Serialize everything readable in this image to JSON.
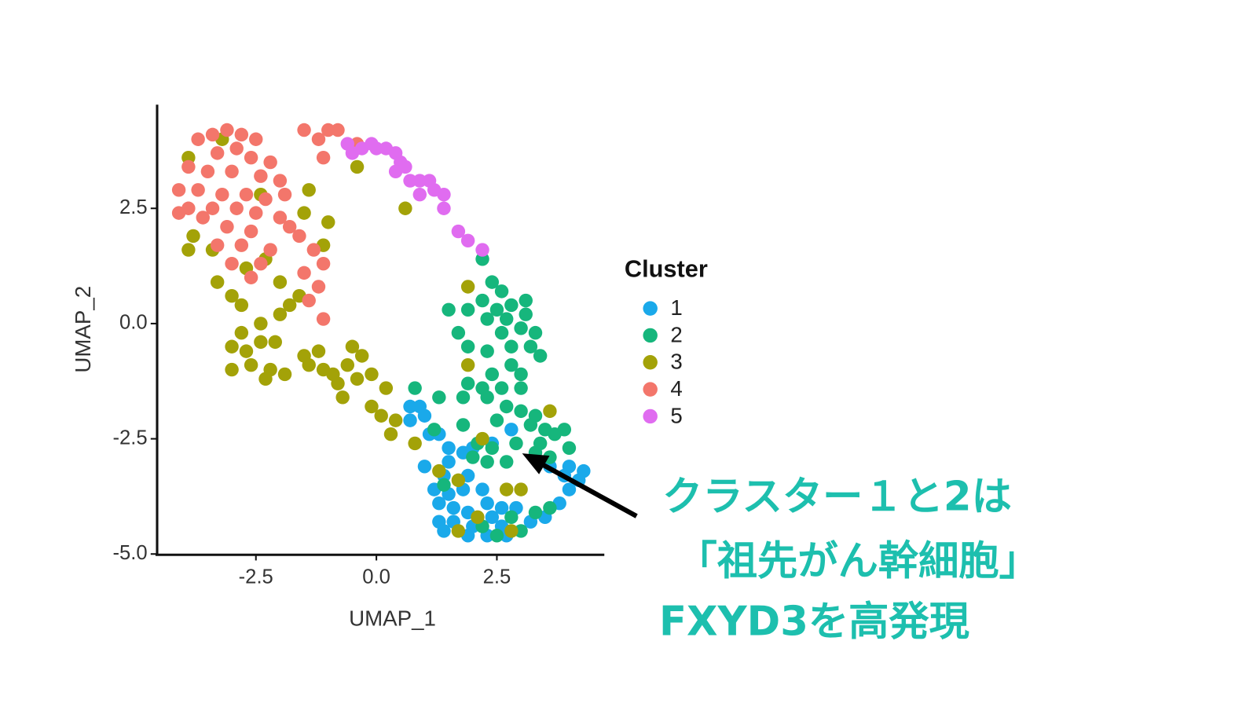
{
  "chart_data": {
    "type": "scatter",
    "xlabel": "UMAP_1",
    "ylabel": "UMAP_2",
    "xlim": [
      -4.55,
      4.73
    ],
    "ylim": [
      -5.0,
      4.75
    ],
    "xticks": [
      -2.5,
      {
        "value": 0,
        "label": "0.0"
      },
      2.5
    ],
    "yticks": [
      {
        "value": -5,
        "label": "-5.0"
      },
      -2.5,
      {
        "value": 0,
        "label": "0.0"
      },
      2.5
    ],
    "grid": false,
    "legend_title": "Cluster",
    "legend": "right",
    "annotation": [
      "クラスター１と2は",
      "「祖先がん幹細胞」",
      "FXYD3を高発現"
    ],
    "series": [
      {
        "name": "1",
        "color": "#1aa9ea",
        "points": [
          [
            0.7,
            -1.8
          ],
          [
            0.9,
            -1.8
          ],
          [
            1.0,
            -2.0
          ],
          [
            0.7,
            -2.1
          ],
          [
            1.1,
            -2.4
          ],
          [
            1.3,
            -2.4
          ],
          [
            1.5,
            -2.7
          ],
          [
            1.8,
            -2.8
          ],
          [
            2.0,
            -2.7
          ],
          [
            2.4,
            -2.6
          ],
          [
            2.8,
            -2.3
          ],
          [
            1.5,
            -3.0
          ],
          [
            1.0,
            -3.1
          ],
          [
            1.4,
            -3.3
          ],
          [
            1.9,
            -3.3
          ],
          [
            2.2,
            -3.6
          ],
          [
            1.2,
            -3.6
          ],
          [
            1.5,
            -3.7
          ],
          [
            1.8,
            -3.6
          ],
          [
            1.3,
            -3.9
          ],
          [
            1.6,
            -4.0
          ],
          [
            1.9,
            -4.1
          ],
          [
            2.3,
            -3.9
          ],
          [
            2.6,
            -4.0
          ],
          [
            2.9,
            -4.0
          ],
          [
            1.3,
            -4.3
          ],
          [
            1.6,
            -4.3
          ],
          [
            2.0,
            -4.4
          ],
          [
            2.4,
            -4.2
          ],
          [
            2.6,
            -4.4
          ],
          [
            2.3,
            -4.6
          ],
          [
            2.7,
            -4.6
          ],
          [
            1.9,
            -4.6
          ],
          [
            1.4,
            -4.5
          ],
          [
            3.2,
            -4.3
          ],
          [
            3.5,
            -4.2
          ],
          [
            3.8,
            -3.9
          ],
          [
            4.0,
            -3.6
          ],
          [
            4.2,
            -3.4
          ],
          [
            3.9,
            -3.3
          ],
          [
            4.3,
            -3.2
          ],
          [
            4.0,
            -3.1
          ],
          [
            3.6,
            -3.1
          ]
        ]
      },
      {
        "name": "2",
        "color": "#16b67c",
        "points": [
          [
            2.2,
            1.4
          ],
          [
            2.4,
            0.9
          ],
          [
            2.6,
            0.7
          ],
          [
            2.2,
            0.5
          ],
          [
            2.5,
            0.3
          ],
          [
            2.8,
            0.4
          ],
          [
            3.1,
            0.5
          ],
          [
            1.5,
            0.3
          ],
          [
            1.9,
            0.3
          ],
          [
            2.3,
            0.1
          ],
          [
            2.7,
            0.1
          ],
          [
            3.1,
            0.2
          ],
          [
            2.6,
            -0.2
          ],
          [
            3.0,
            -0.1
          ],
          [
            3.3,
            -0.2
          ],
          [
            1.7,
            -0.2
          ],
          [
            1.9,
            -0.5
          ],
          [
            2.3,
            -0.6
          ],
          [
            2.8,
            -0.5
          ],
          [
            3.2,
            -0.5
          ],
          [
            3.4,
            -0.7
          ],
          [
            2.8,
            -0.9
          ],
          [
            2.4,
            -1.1
          ],
          [
            3.0,
            -1.1
          ],
          [
            1.9,
            -1.3
          ],
          [
            2.2,
            -1.4
          ],
          [
            2.6,
            -1.4
          ],
          [
            3.0,
            -1.4
          ],
          [
            0.8,
            -1.4
          ],
          [
            1.3,
            -1.6
          ],
          [
            1.8,
            -1.6
          ],
          [
            2.3,
            -1.6
          ],
          [
            2.7,
            -1.8
          ],
          [
            3.0,
            -1.9
          ],
          [
            3.3,
            -2.0
          ],
          [
            2.5,
            -2.1
          ],
          [
            1.8,
            -2.2
          ],
          [
            3.2,
            -2.2
          ],
          [
            3.5,
            -2.3
          ],
          [
            1.2,
            -2.3
          ],
          [
            2.1,
            -2.6
          ],
          [
            2.4,
            -2.7
          ],
          [
            2.9,
            -2.6
          ],
          [
            3.4,
            -2.6
          ],
          [
            3.7,
            -2.4
          ],
          [
            3.9,
            -2.3
          ],
          [
            2.0,
            -2.9
          ],
          [
            2.3,
            -3.0
          ],
          [
            2.7,
            -3.0
          ],
          [
            3.3,
            -2.8
          ],
          [
            3.6,
            -2.9
          ],
          [
            4.0,
            -2.7
          ],
          [
            1.4,
            -3.5
          ],
          [
            3.6,
            -4.0
          ],
          [
            3.3,
            -4.1
          ],
          [
            2.8,
            -4.2
          ],
          [
            2.5,
            -4.6
          ],
          [
            3.0,
            -4.5
          ],
          [
            2.2,
            -4.4
          ]
        ]
      },
      {
        "name": "3",
        "color": "#a3a208",
        "points": [
          [
            -3.9,
            3.6
          ],
          [
            -3.2,
            4.0
          ],
          [
            -2.4,
            2.8
          ],
          [
            -1.4,
            2.9
          ],
          [
            -1.5,
            2.4
          ],
          [
            -1.0,
            2.2
          ],
          [
            -1.1,
            1.7
          ],
          [
            -3.8,
            1.9
          ],
          [
            -3.9,
            1.6
          ],
          [
            -3.4,
            1.6
          ],
          [
            -2.7,
            1.2
          ],
          [
            -2.3,
            1.4
          ],
          [
            -3.3,
            0.9
          ],
          [
            -2.0,
            0.9
          ],
          [
            -3.0,
            0.6
          ],
          [
            -2.8,
            0.4
          ],
          [
            -1.6,
            0.6
          ],
          [
            -1.8,
            0.4
          ],
          [
            -2.0,
            0.2
          ],
          [
            -2.4,
            0.0
          ],
          [
            -2.8,
            -0.2
          ],
          [
            -3.0,
            -0.5
          ],
          [
            -2.7,
            -0.6
          ],
          [
            -2.4,
            -0.4
          ],
          [
            -2.1,
            -0.4
          ],
          [
            -2.6,
            -0.9
          ],
          [
            -3.0,
            -1.0
          ],
          [
            -2.2,
            -1.0
          ],
          [
            -1.9,
            -1.1
          ],
          [
            -2.3,
            -1.2
          ],
          [
            -1.5,
            -0.7
          ],
          [
            -1.2,
            -0.6
          ],
          [
            -1.4,
            -0.9
          ],
          [
            -1.1,
            -1.0
          ],
          [
            -0.9,
            -1.1
          ],
          [
            -0.5,
            -0.5
          ],
          [
            -0.3,
            -0.7
          ],
          [
            -0.6,
            -0.9
          ],
          [
            -0.8,
            -1.3
          ],
          [
            -0.4,
            -1.2
          ],
          [
            -0.1,
            -1.1
          ],
          [
            -0.7,
            -1.6
          ],
          [
            0.2,
            -1.4
          ],
          [
            -0.1,
            -1.8
          ],
          [
            0.1,
            -2.0
          ],
          [
            0.4,
            -2.1
          ],
          [
            0.3,
            -2.4
          ],
          [
            0.8,
            -2.6
          ],
          [
            1.3,
            -3.2
          ],
          [
            1.7,
            -3.4
          ],
          [
            1.7,
            -4.5
          ],
          [
            2.1,
            -4.2
          ],
          [
            2.2,
            -2.5
          ],
          [
            1.9,
            -0.9
          ],
          [
            1.9,
            0.8
          ],
          [
            0.6,
            2.5
          ],
          [
            -0.4,
            3.4
          ],
          [
            2.7,
            -3.6
          ],
          [
            3.0,
            -3.6
          ],
          [
            2.8,
            -4.5
          ],
          [
            3.6,
            -1.9
          ]
        ]
      },
      {
        "name": "4",
        "color": "#f3766b",
        "points": [
          [
            -3.1,
            4.2
          ],
          [
            -3.4,
            4.1
          ],
          [
            -2.8,
            4.1
          ],
          [
            -2.5,
            4.0
          ],
          [
            -3.7,
            4.0
          ],
          [
            -2.9,
            3.8
          ],
          [
            -3.3,
            3.7
          ],
          [
            -2.6,
            3.6
          ],
          [
            -2.2,
            3.5
          ],
          [
            -3.9,
            3.4
          ],
          [
            -3.5,
            3.3
          ],
          [
            -3.0,
            3.3
          ],
          [
            -2.4,
            3.2
          ],
          [
            -2.0,
            3.1
          ],
          [
            -4.1,
            2.9
          ],
          [
            -3.7,
            2.9
          ],
          [
            -3.2,
            2.8
          ],
          [
            -2.7,
            2.8
          ],
          [
            -2.3,
            2.7
          ],
          [
            -1.9,
            2.8
          ],
          [
            -3.9,
            2.5
          ],
          [
            -3.4,
            2.5
          ],
          [
            -2.9,
            2.5
          ],
          [
            -2.5,
            2.4
          ],
          [
            -2.0,
            2.3
          ],
          [
            -4.1,
            2.4
          ],
          [
            -3.6,
            2.3
          ],
          [
            -3.1,
            2.1
          ],
          [
            -2.6,
            2.0
          ],
          [
            -1.8,
            2.1
          ],
          [
            -3.3,
            1.7
          ],
          [
            -2.8,
            1.7
          ],
          [
            -2.2,
            1.6
          ],
          [
            -1.6,
            1.9
          ],
          [
            -1.3,
            1.6
          ],
          [
            -3.0,
            1.3
          ],
          [
            -2.4,
            1.3
          ],
          [
            -1.5,
            1.1
          ],
          [
            -1.1,
            1.3
          ],
          [
            -2.6,
            1.0
          ],
          [
            -1.2,
            0.8
          ],
          [
            -1.4,
            0.5
          ],
          [
            -1.1,
            0.1
          ],
          [
            -1.5,
            4.2
          ],
          [
            -1.0,
            4.2
          ],
          [
            -1.2,
            4.0
          ],
          [
            -0.8,
            4.2
          ],
          [
            -0.4,
            3.9
          ],
          [
            -1.1,
            3.6
          ]
        ]
      },
      {
        "name": "5",
        "color": "#e06cf0",
        "points": [
          [
            -0.6,
            3.9
          ],
          [
            -0.3,
            3.8
          ],
          [
            -0.1,
            3.9
          ],
          [
            0.0,
            3.8
          ],
          [
            0.2,
            3.8
          ],
          [
            0.4,
            3.7
          ],
          [
            0.5,
            3.5
          ],
          [
            0.4,
            3.3
          ],
          [
            0.7,
            3.1
          ],
          [
            0.9,
            3.1
          ],
          [
            1.1,
            3.1
          ],
          [
            0.9,
            2.8
          ],
          [
            1.2,
            2.9
          ],
          [
            1.4,
            2.8
          ],
          [
            1.4,
            2.5
          ],
          [
            1.7,
            2.0
          ],
          [
            1.9,
            1.8
          ],
          [
            2.2,
            1.6
          ],
          [
            -0.5,
            3.7
          ],
          [
            0.6,
            3.4
          ]
        ]
      }
    ]
  }
}
